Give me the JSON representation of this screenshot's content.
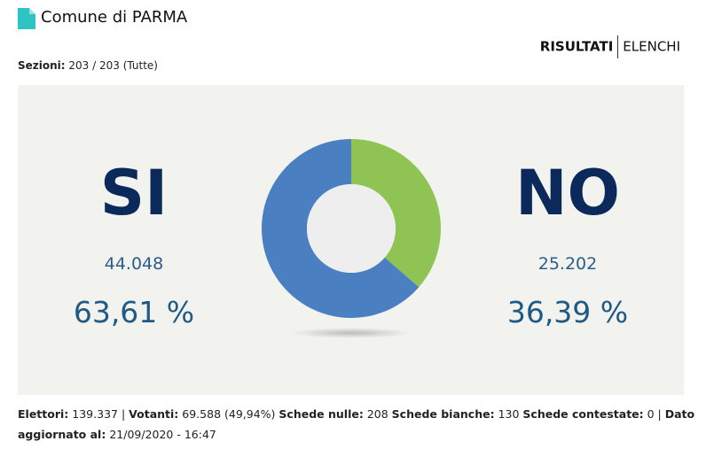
{
  "header": {
    "title": "Comune di PARMA"
  },
  "nav": {
    "active": "RISULTATI",
    "other": "ELENCHI"
  },
  "sezioni": {
    "label": "Sezioni:",
    "value": "203 / 203 (Tutte)"
  },
  "chart_data": {
    "type": "pie",
    "categories": [
      "SI",
      "NO"
    ],
    "values": [
      63.61,
      36.39
    ],
    "value_labels": [
      "63,61 %",
      "36,39 %"
    ],
    "colors": [
      "#4a7fc1",
      "#8fc454"
    ],
    "votes": [
      44048,
      25202
    ],
    "vote_labels": [
      "44.048",
      "25.202"
    ]
  },
  "footer": {
    "items": [
      {
        "label": "Elettori:",
        "value": "139.337 |"
      },
      {
        "label": "Votanti:",
        "value": "69.588 (49,94%)"
      },
      {
        "label": "Schede nulle:",
        "value": "208"
      },
      {
        "label": "Schede bianche:",
        "value": "130"
      },
      {
        "label": "Schede contestate:",
        "value": "0 |"
      },
      {
        "label": "Dato aggiornato al:",
        "value": "21/09/2020 - 16:47"
      }
    ]
  }
}
